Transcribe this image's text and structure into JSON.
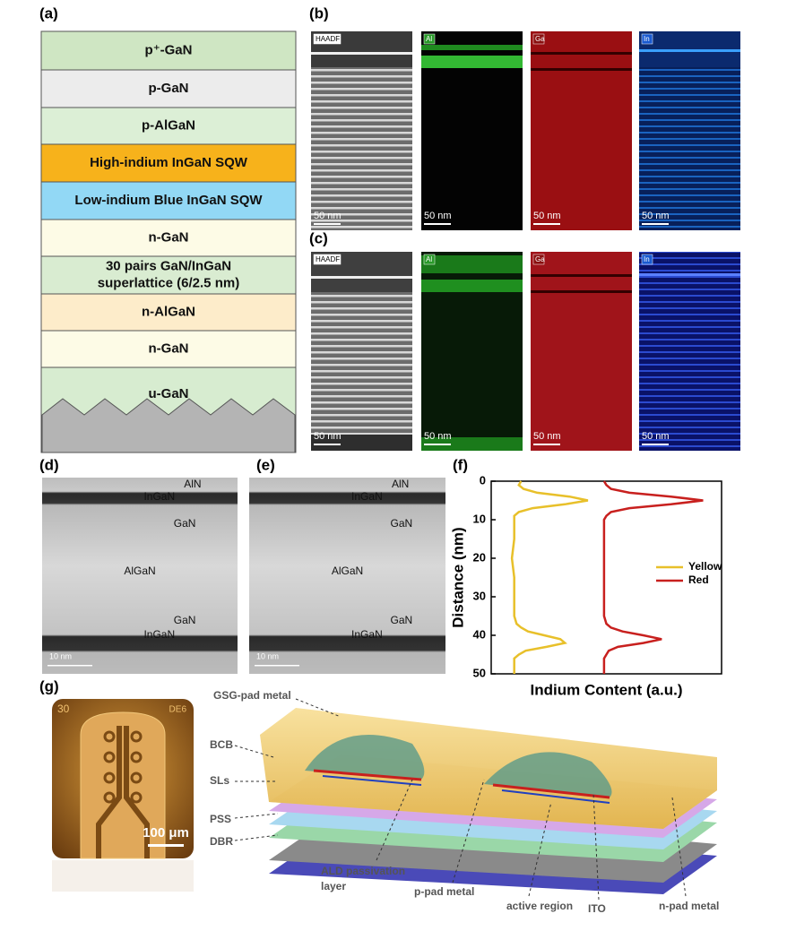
{
  "panel_labels": [
    "(a)",
    "(b)",
    "(c)",
    "(d)",
    "(e)",
    "(f)",
    "(g)"
  ],
  "layer_stack": [
    {
      "lines": [
        "p⁺-GaN"
      ],
      "color": "#cfe6c3"
    },
    {
      "lines": [
        "p-GaN"
      ],
      "color": "#ececec"
    },
    {
      "lines": [
        "p-AlGaN"
      ],
      "color": "#dcefd6"
    },
    {
      "lines": [
        "High-indium InGaN SQW"
      ],
      "color": "#f7b21b"
    },
    {
      "lines": [
        "Low-indium Blue InGaN SQW"
      ],
      "color": "#92d8f5"
    },
    {
      "lines": [
        "n-GaN"
      ],
      "color": "#fdfbe6"
    },
    {
      "lines": [
        "30 pairs GaN/InGaN",
        "superlattice (6/2.5 nm)"
      ],
      "color": "#d9ecd1"
    },
    {
      "lines": [
        "n-AlGaN"
      ],
      "color": "#fdecca"
    },
    {
      "lines": [
        "n-GaN"
      ],
      "color": "#fdfbe6"
    },
    {
      "lines": [
        "u-GaN"
      ],
      "color": "#d7ecd0"
    }
  ],
  "eds": {
    "channels": [
      "HAADF",
      "Al",
      "Ga",
      "In"
    ],
    "scale_bar": "50 nm"
  },
  "tem": {
    "labels": [
      "AlN",
      "InGaN",
      "GaN",
      "AlGaN",
      "GaN",
      "InGaN"
    ],
    "scale_bar": "10 nm"
  },
  "micrograph": {
    "labels": [
      "30",
      "DE6"
    ],
    "scale_bar": "100 μm"
  },
  "device_callouts": [
    [
      "GSG-pad metal"
    ],
    [
      "BCB"
    ],
    [
      "SLs"
    ],
    [
      "PSS"
    ],
    [
      "DBR"
    ],
    [
      "ALD passivation",
      "layer"
    ],
    [
      "p-pad metal"
    ],
    [
      "active region"
    ],
    [
      "ITO"
    ],
    [
      "n-pad metal"
    ]
  ],
  "chart_data": {
    "type": "line",
    "xlabel": "Indium Content (a.u.)",
    "ylabel": "Distance (nm)",
    "y": [
      0,
      1,
      2,
      3,
      4,
      5,
      6,
      7,
      8,
      9,
      10,
      15,
      20,
      25,
      30,
      35,
      37,
      38,
      39,
      40,
      41,
      42,
      43,
      44,
      45,
      46,
      48,
      50
    ],
    "series": [
      {
        "name": "Yellow",
        "color": "#e8c02a",
        "values": [
          1.3,
          1.2,
          1.4,
          2.0,
          3.4,
          4.2,
          3.2,
          1.8,
          1.2,
          1.0,
          1.0,
          1.0,
          0.9,
          1.0,
          1.0,
          1.0,
          1.1,
          1.3,
          1.6,
          2.3,
          3.0,
          3.2,
          2.4,
          1.5,
          1.2,
          1.0,
          1.0,
          1.0
        ]
      },
      {
        "name": "Red",
        "color": "#c8201e",
        "values": [
          4.9,
          5.0,
          5.2,
          6.0,
          7.8,
          9.2,
          7.8,
          6.0,
          5.2,
          5.0,
          4.9,
          4.9,
          4.9,
          4.9,
          4.9,
          4.9,
          5.0,
          5.2,
          5.7,
          6.6,
          7.4,
          6.6,
          5.5,
          5.1,
          5.0,
          4.9,
          4.9,
          4.9
        ]
      }
    ],
    "xlim": [
      0,
      10
    ],
    "ylim": [
      50,
      0
    ],
    "yticks": [
      0,
      10,
      20,
      30,
      40,
      50
    ],
    "legend": "right"
  }
}
